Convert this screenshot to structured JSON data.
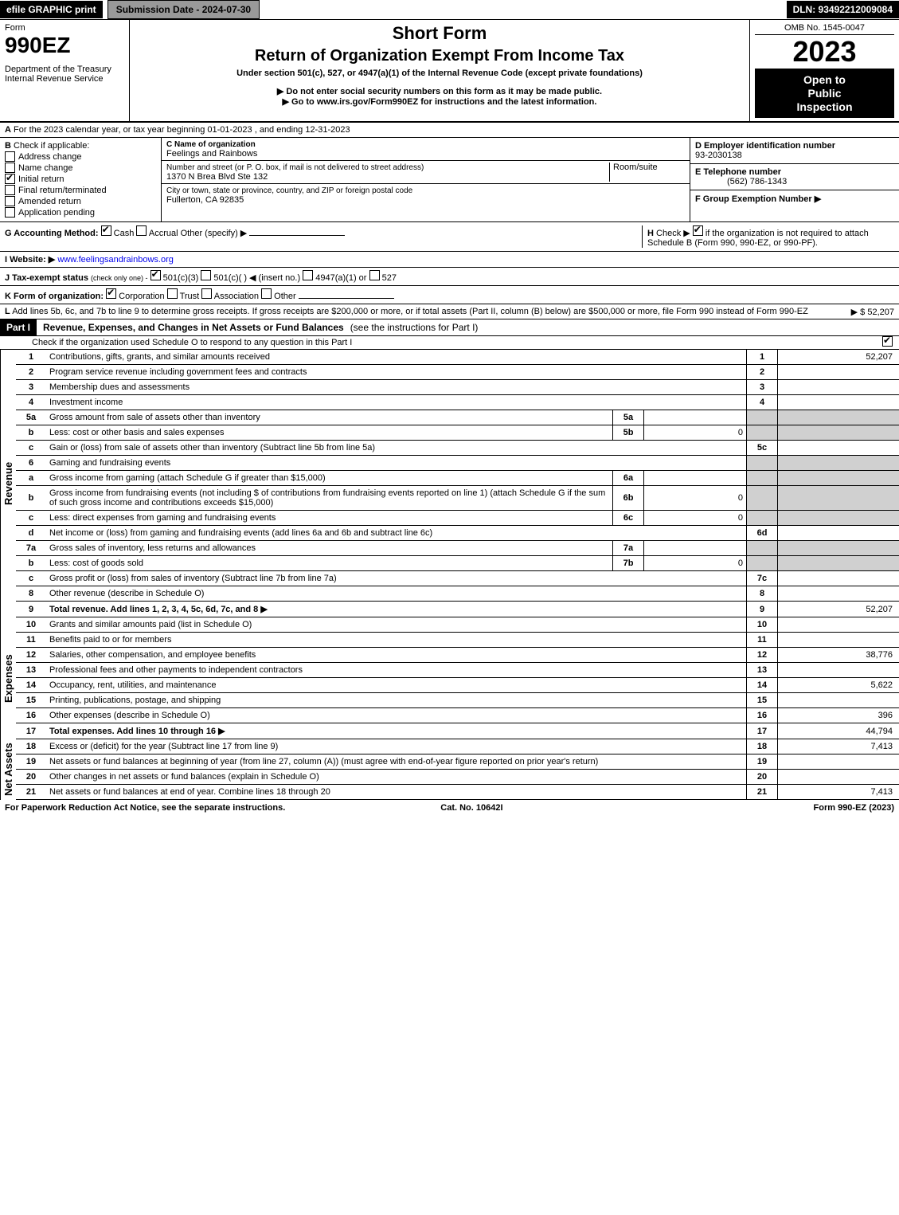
{
  "top": {
    "efile": "efile GRAPHIC print",
    "submission": "Submission Date - 2024-07-30",
    "dln": "DLN: 93492212009084"
  },
  "header": {
    "form_label": "Form",
    "form_number": "990EZ",
    "dept1": "Department of the Treasury",
    "dept2": "Internal Revenue Service",
    "short_form": "Short Form",
    "title": "Return of Organization Exempt From Income Tax",
    "subtitle": "Under section 501(c), 527, or 4947(a)(1) of the Internal Revenue Code (except private foundations)",
    "note1": "▶ Do not enter social security numbers on this form as it may be made public.",
    "note2": "▶ Go to www.irs.gov/Form990EZ for instructions and the latest information.",
    "omb": "OMB No. 1545-0047",
    "year": "2023",
    "badge1": "Open to",
    "badge2": "Public",
    "badge3": "Inspection"
  },
  "sectionA": {
    "label": "A",
    "text": "For the 2023 calendar year, or tax year beginning 01-01-2023 , and ending 12-31-2023"
  },
  "sectionB": {
    "label": "B",
    "title": "Check if applicable:",
    "items": [
      {
        "label": "Address change",
        "checked": false
      },
      {
        "label": "Name change",
        "checked": false
      },
      {
        "label": "Initial return",
        "checked": true
      },
      {
        "label": "Final return/terminated",
        "checked": false
      },
      {
        "label": "Amended return",
        "checked": false
      },
      {
        "label": "Application pending",
        "checked": false
      }
    ]
  },
  "sectionC": {
    "name_label": "C Name of organization",
    "name": "Feelings and Rainbows",
    "addr_label": "Number and street (or P. O. box, if mail is not delivered to street address)",
    "room_label": "Room/suite",
    "addr": "1370 N Brea Blvd Ste 132",
    "city_label": "City or town, state or province, country, and ZIP or foreign postal code",
    "city": "Fullerton, CA  92835"
  },
  "sectionD": {
    "ein_label": "D Employer identification number",
    "ein": "93-2030138",
    "phone_label": "E Telephone number",
    "phone": "(562) 786-1343",
    "group_label": "F Group Exemption Number ▶"
  },
  "rowG": {
    "label": "G Accounting Method:",
    "cash": "Cash",
    "accrual": "Accrual",
    "other": "Other (specify) ▶",
    "h_label": "H",
    "h_text1": "Check ▶",
    "h_text2": "if the organization is not required to attach Schedule B (Form 990, 990-EZ, or 990-PF)."
  },
  "rowI": {
    "label": "I Website: ▶",
    "value": "www.feelingsandrainbows.org"
  },
  "rowJ": {
    "label": "J Tax-exempt status",
    "sub": "(check only one) -",
    "opt1": "501(c)(3)",
    "opt2": "501(c)(  ) ◀ (insert no.)",
    "opt3": "4947(a)(1) or",
    "opt4": "527"
  },
  "rowK": {
    "label": "K Form of organization:",
    "opts": [
      "Corporation",
      "Trust",
      "Association",
      "Other"
    ]
  },
  "rowL": {
    "label": "L",
    "text": "Add lines 5b, 6c, and 7b to line 9 to determine gross receipts. If gross receipts are $200,000 or more, or if total assets (Part II, column (B) below) are $500,000 or more, file Form 990 instead of Form 990-EZ",
    "amount": "▶ $ 52,207"
  },
  "part1": {
    "label": "Part I",
    "title": "Revenue, Expenses, and Changes in Net Assets or Fund Balances",
    "sub": "(see the instructions for Part I)",
    "check_text": "Check if the organization used Schedule O to respond to any question in this Part I"
  },
  "sideLabels": {
    "revenue": "Revenue",
    "expenses": "Expenses",
    "netassets": "Net Assets"
  },
  "lines": {
    "l1": {
      "n": "1",
      "d": "Contributions, gifts, grants, and similar amounts received",
      "rn": "1",
      "rv": "52,207"
    },
    "l2": {
      "n": "2",
      "d": "Program service revenue including government fees and contracts",
      "rn": "2",
      "rv": ""
    },
    "l3": {
      "n": "3",
      "d": "Membership dues and assessments",
      "rn": "3",
      "rv": ""
    },
    "l4": {
      "n": "4",
      "d": "Investment income",
      "rn": "4",
      "rv": ""
    },
    "l5a": {
      "n": "5a",
      "d": "Gross amount from sale of assets other than inventory",
      "mn": "5a",
      "mv": ""
    },
    "l5b": {
      "n": "b",
      "d": "Less: cost or other basis and sales expenses",
      "mn": "5b",
      "mv": "0"
    },
    "l5c": {
      "n": "c",
      "d": "Gain or (loss) from sale of assets other than inventory (Subtract line 5b from line 5a)",
      "rn": "5c",
      "rv": ""
    },
    "l6": {
      "n": "6",
      "d": "Gaming and fundraising events"
    },
    "l6a": {
      "n": "a",
      "d": "Gross income from gaming (attach Schedule G if greater than $15,000)",
      "mn": "6a",
      "mv": ""
    },
    "l6b": {
      "n": "b",
      "d": "Gross income from fundraising events (not including $               of contributions from fundraising events reported on line 1) (attach Schedule G if the sum of such gross income and contributions exceeds $15,000)",
      "mn": "6b",
      "mv": "0"
    },
    "l6c": {
      "n": "c",
      "d": "Less: direct expenses from gaming and fundraising events",
      "mn": "6c",
      "mv": "0"
    },
    "l6d": {
      "n": "d",
      "d": "Net income or (loss) from gaming and fundraising events (add lines 6a and 6b and subtract line 6c)",
      "rn": "6d",
      "rv": ""
    },
    "l7a": {
      "n": "7a",
      "d": "Gross sales of inventory, less returns and allowances",
      "mn": "7a",
      "mv": ""
    },
    "l7b": {
      "n": "b",
      "d": "Less: cost of goods sold",
      "mn": "7b",
      "mv": "0"
    },
    "l7c": {
      "n": "c",
      "d": "Gross profit or (loss) from sales of inventory (Subtract line 7b from line 7a)",
      "rn": "7c",
      "rv": ""
    },
    "l8": {
      "n": "8",
      "d": "Other revenue (describe in Schedule O)",
      "rn": "8",
      "rv": ""
    },
    "l9": {
      "n": "9",
      "d": "Total revenue. Add lines 1, 2, 3, 4, 5c, 6d, 7c, and 8",
      "rn": "9",
      "rv": "52,207",
      "bold": true,
      "arrow": true
    },
    "l10": {
      "n": "10",
      "d": "Grants and similar amounts paid (list in Schedule O)",
      "rn": "10",
      "rv": ""
    },
    "l11": {
      "n": "11",
      "d": "Benefits paid to or for members",
      "rn": "11",
      "rv": ""
    },
    "l12": {
      "n": "12",
      "d": "Salaries, other compensation, and employee benefits",
      "rn": "12",
      "rv": "38,776"
    },
    "l13": {
      "n": "13",
      "d": "Professional fees and other payments to independent contractors",
      "rn": "13",
      "rv": ""
    },
    "l14": {
      "n": "14",
      "d": "Occupancy, rent, utilities, and maintenance",
      "rn": "14",
      "rv": "5,622"
    },
    "l15": {
      "n": "15",
      "d": "Printing, publications, postage, and shipping",
      "rn": "15",
      "rv": ""
    },
    "l16": {
      "n": "16",
      "d": "Other expenses (describe in Schedule O)",
      "rn": "16",
      "rv": "396"
    },
    "l17": {
      "n": "17",
      "d": "Total expenses. Add lines 10 through 16",
      "rn": "17",
      "rv": "44,794",
      "bold": true,
      "arrow": true
    },
    "l18": {
      "n": "18",
      "d": "Excess or (deficit) for the year (Subtract line 17 from line 9)",
      "rn": "18",
      "rv": "7,413"
    },
    "l19": {
      "n": "19",
      "d": "Net assets or fund balances at beginning of year (from line 27, column (A)) (must agree with end-of-year figure reported on prior year's return)",
      "rn": "19",
      "rv": ""
    },
    "l20": {
      "n": "20",
      "d": "Other changes in net assets or fund balances (explain in Schedule O)",
      "rn": "20",
      "rv": ""
    },
    "l21": {
      "n": "21",
      "d": "Net assets or fund balances at end of year. Combine lines 18 through 20",
      "rn": "21",
      "rv": "7,413"
    }
  },
  "footer": {
    "left": "For Paperwork Reduction Act Notice, see the separate instructions.",
    "center": "Cat. No. 10642I",
    "right": "Form 990-EZ (2023)"
  }
}
